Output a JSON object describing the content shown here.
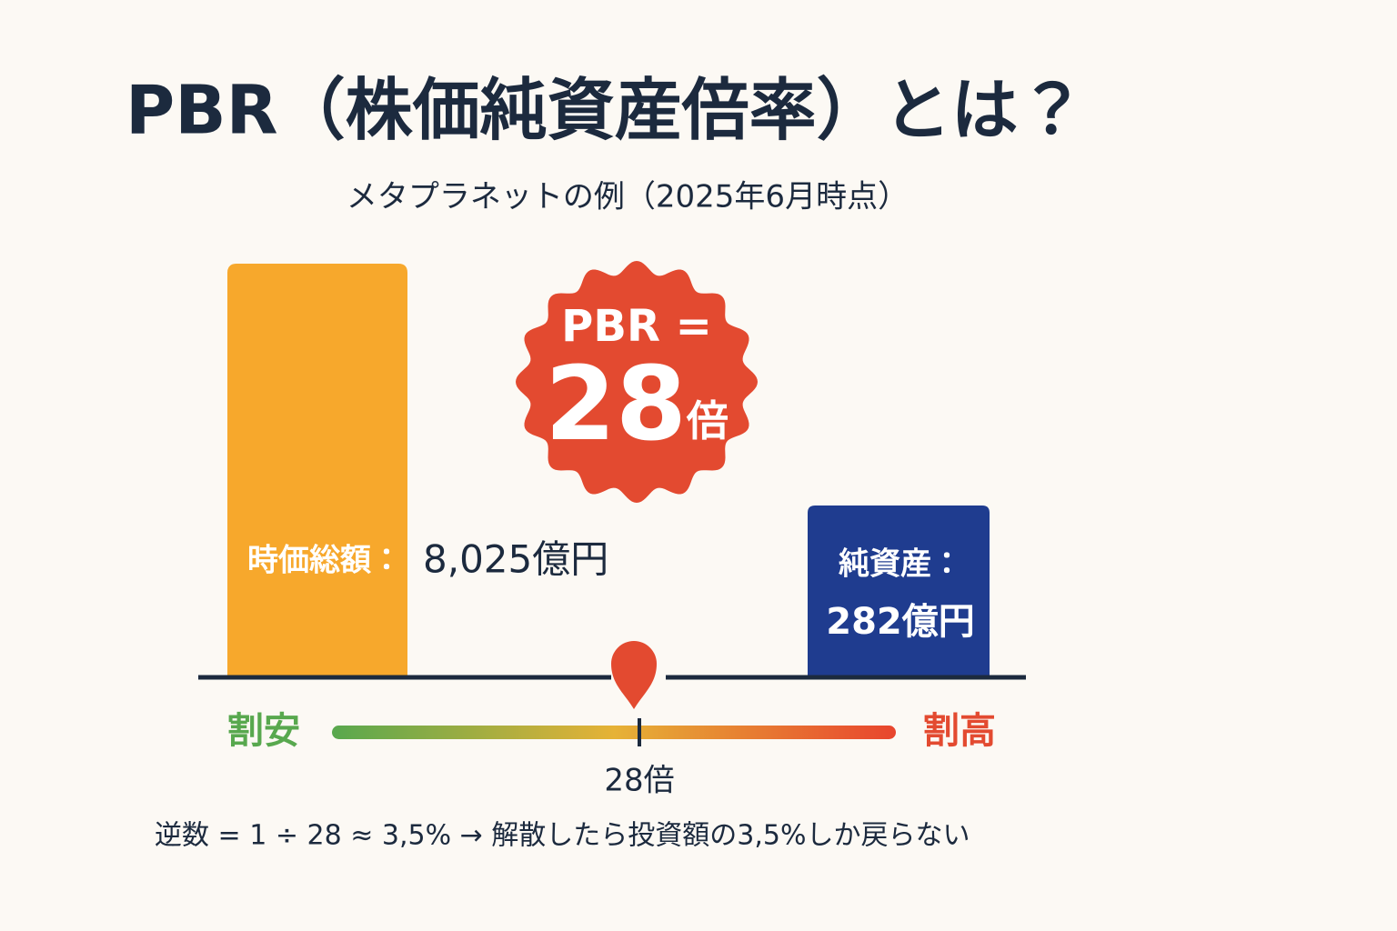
{
  "title": "PBR（株価純資産倍率）とは？",
  "subtitle": "メタプラネットの例（2025年6月時点）",
  "market_cap": {
    "label": "時価総額：",
    "value": "8,025億円"
  },
  "net_assets": {
    "label": "純資産：",
    "value": "282億円"
  },
  "badge": {
    "label": "PBR =",
    "value": "28",
    "unit": "倍"
  },
  "scale": {
    "low": "割安",
    "high": "割高",
    "marker": "28倍"
  },
  "footnote": "逆数 = 1 ÷ 28 ≈ 3,5% → 解散したら投資額の3,5%しか戻らない"
}
